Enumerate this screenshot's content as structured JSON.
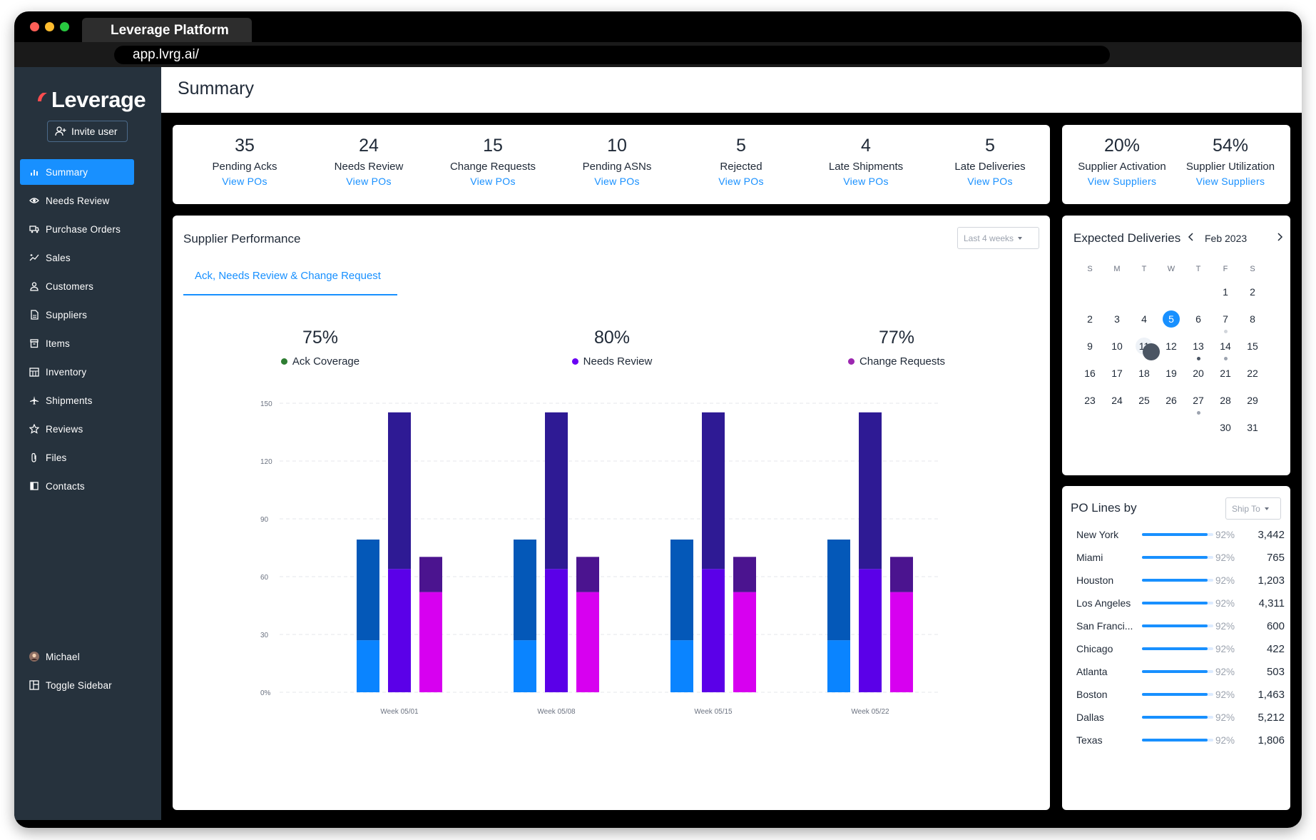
{
  "browser": {
    "tab_title": "Leverage Platform",
    "url": "app.lvrg.ai/"
  },
  "sidebar": {
    "logo_text": "Leverage",
    "invite_label": "Invite user",
    "items": [
      {
        "label": "Summary",
        "icon": "bar-chart-icon",
        "active": true
      },
      {
        "label": "Needs Review",
        "icon": "eye-icon"
      },
      {
        "label": "Purchase Orders",
        "icon": "truck-icon"
      },
      {
        "label": "Sales",
        "icon": "sparkle-line-icon"
      },
      {
        "label": "Customers",
        "icon": "user-icon"
      },
      {
        "label": "Suppliers",
        "icon": "document-icon"
      },
      {
        "label": "Items",
        "icon": "box-icon"
      },
      {
        "label": "Inventory",
        "icon": "building-icon"
      },
      {
        "label": "Shipments",
        "icon": "plane-icon"
      },
      {
        "label": "Reviews",
        "icon": "star-icon"
      },
      {
        "label": "Files",
        "icon": "paperclip-icon"
      },
      {
        "label": "Contacts",
        "icon": "contact-book-icon"
      }
    ],
    "user_name": "Michael",
    "toggle_label": "Toggle Sidebar"
  },
  "header": {
    "title": "Summary"
  },
  "stats": [
    {
      "value": "35",
      "label": "Pending Acks",
      "link": "View POs"
    },
    {
      "value": "24",
      "label": "Needs Review",
      "link": "View POs"
    },
    {
      "value": "15",
      "label": "Change Requests",
      "link": "View POs"
    },
    {
      "value": "10",
      "label": "Pending ASNs",
      "link": "View POs"
    },
    {
      "value": "5",
      "label": "Rejected",
      "link": "View POs"
    },
    {
      "value": "4",
      "label": "Late Shipments",
      "link": "View POs"
    },
    {
      "value": "5",
      "label": "Late Deliveries",
      "link": "View POs"
    }
  ],
  "supplier_stats": [
    {
      "value": "20%",
      "label": "Supplier Activation",
      "link": "View Suppliers"
    },
    {
      "value": "54%",
      "label": "Supplier Utilization",
      "link": "View Suppliers"
    }
  ],
  "performance": {
    "title": "Supplier Performance",
    "range": "Last 4 weeks",
    "tab": "Ack, Needs Review & Change Request",
    "metrics": [
      {
        "value": "75%",
        "label": "Ack Coverage",
        "color": "#2e7d32"
      },
      {
        "value": "80%",
        "label": "Needs Review",
        "color": "#6a00f4"
      },
      {
        "value": "77%",
        "label": "Change Requests",
        "color": "#9c27b0"
      }
    ]
  },
  "chart_data": {
    "type": "bar",
    "stacked": true,
    "categories": [
      "Week 05/01",
      "Week 05/08",
      "Week 05/15",
      "Week 05/22"
    ],
    "yticks": [
      "0%",
      "30",
      "60",
      "90",
      "120",
      "150"
    ],
    "ylim": [
      0,
      150
    ],
    "grid": true,
    "groups": [
      {
        "segments": [
          {
            "values": [
              27,
              27,
              27,
              27
            ],
            "color": "#0a84ff"
          },
          {
            "values": [
              53,
              53,
              53,
              53
            ],
            "color": "#0458b8"
          }
        ]
      },
      {
        "segments": [
          {
            "values": [
              64,
              64,
              64,
              64
            ],
            "color": "#5b00e8"
          },
          {
            "values": [
              82,
              82,
              82,
              82
            ],
            "color": "#2e1a94"
          }
        ]
      },
      {
        "segments": [
          {
            "values": [
              52,
              52,
              52,
              52
            ],
            "color": "#d700f0"
          },
          {
            "values": [
              19,
              19,
              19,
              19
            ],
            "color": "#4b148f"
          }
        ]
      }
    ]
  },
  "calendar": {
    "title": "Expected Deliveries",
    "month": "Feb 2023",
    "weekdays": [
      "S",
      "M",
      "T",
      "W",
      "T",
      "F",
      "S"
    ],
    "weeks": [
      [
        "",
        "",
        "",
        "",
        "",
        "1",
        "2"
      ],
      [
        "2",
        "3",
        "4",
        "5",
        "6",
        "7",
        "8"
      ],
      [
        "9",
        "10",
        "11",
        "12",
        "13",
        "14",
        "15"
      ],
      [
        "16",
        "17",
        "18",
        "19",
        "20",
        "21",
        "22"
      ],
      [
        "23",
        "24",
        "25",
        "26",
        "27",
        "28",
        "29"
      ],
      [
        "",
        "",
        "",
        "",
        "",
        "30",
        "31"
      ]
    ],
    "today": "5"
  },
  "po_lines": {
    "title": "PO Lines by",
    "filter": "Ship To",
    "rows": [
      {
        "city": "New York",
        "pct": "92%",
        "value": "3,442",
        "fill": 0.92
      },
      {
        "city": "Miami",
        "pct": "92%",
        "value": "765",
        "fill": 0.92
      },
      {
        "city": "Houston",
        "pct": "92%",
        "value": "1,203",
        "fill": 0.92
      },
      {
        "city": "Los Angeles",
        "pct": "92%",
        "value": "4,311",
        "fill": 0.92
      },
      {
        "city": "San Franci...",
        "pct": "92%",
        "value": "600",
        "fill": 0.92
      },
      {
        "city": "Chicago",
        "pct": "92%",
        "value": "422",
        "fill": 0.92
      },
      {
        "city": "Atlanta",
        "pct": "92%",
        "value": "503",
        "fill": 0.92
      },
      {
        "city": "Boston",
        "pct": "92%",
        "value": "1,463",
        "fill": 0.92
      },
      {
        "city": "Dallas",
        "pct": "92%",
        "value": "5,212",
        "fill": 0.92
      },
      {
        "city": "Texas",
        "pct": "92%",
        "value": "1,806",
        "fill": 0.92
      }
    ]
  }
}
